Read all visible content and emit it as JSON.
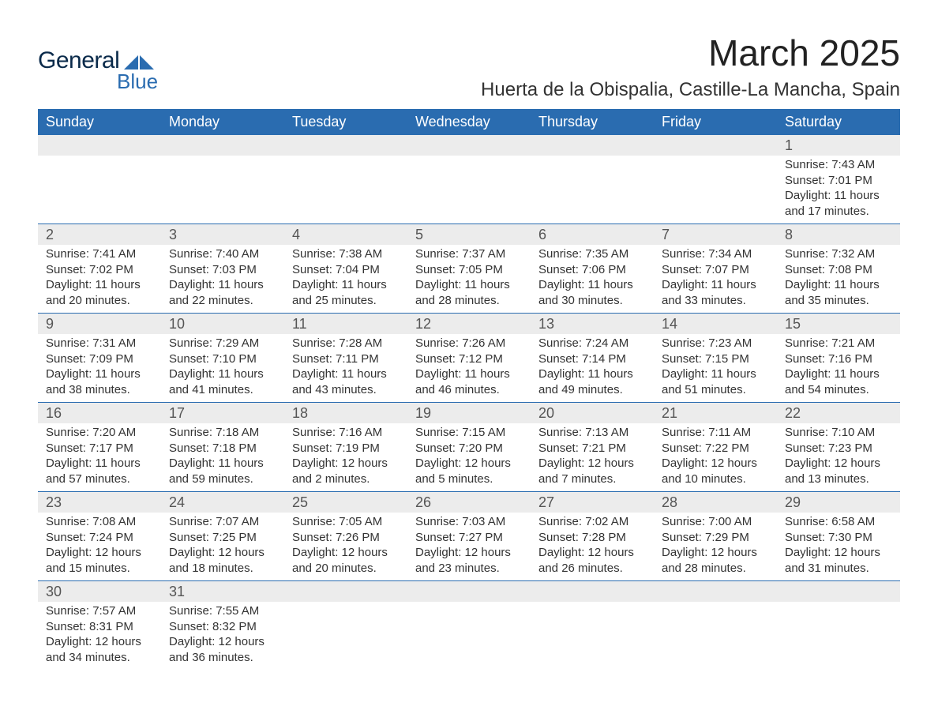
{
  "logo": {
    "word1": "General",
    "word2": "Blue",
    "tri_color": "#2a6cb0",
    "text_color_dark": "#0a2a4a"
  },
  "title": {
    "month": "March 2025",
    "location": "Huerta de la Obispalia, Castille-La Mancha, Spain"
  },
  "colors": {
    "header_bg": "#2a6cb0",
    "header_text": "#ffffff",
    "daynum_bg": "#ececec",
    "daynum_text": "#555555",
    "body_text": "#333333",
    "row_border": "#2a6cb0",
    "page_bg": "#ffffff"
  },
  "fonts": {
    "title_month_pt": 46,
    "title_location_pt": 24,
    "weekday_pt": 18,
    "daynum_pt": 18,
    "body_pt": 15
  },
  "weekdays": [
    "Sunday",
    "Monday",
    "Tuesday",
    "Wednesday",
    "Thursday",
    "Friday",
    "Saturday"
  ],
  "labels": {
    "sunrise": "Sunrise:",
    "sunset": "Sunset:",
    "daylight": "Daylight:"
  },
  "weeks": [
    [
      null,
      null,
      null,
      null,
      null,
      null,
      {
        "n": "1",
        "sunrise": "7:43 AM",
        "sunset": "7:01 PM",
        "daylight": "11 hours and 17 minutes."
      }
    ],
    [
      {
        "n": "2",
        "sunrise": "7:41 AM",
        "sunset": "7:02 PM",
        "daylight": "11 hours and 20 minutes."
      },
      {
        "n": "3",
        "sunrise": "7:40 AM",
        "sunset": "7:03 PM",
        "daylight": "11 hours and 22 minutes."
      },
      {
        "n": "4",
        "sunrise": "7:38 AM",
        "sunset": "7:04 PM",
        "daylight": "11 hours and 25 minutes."
      },
      {
        "n": "5",
        "sunrise": "7:37 AM",
        "sunset": "7:05 PM",
        "daylight": "11 hours and 28 minutes."
      },
      {
        "n": "6",
        "sunrise": "7:35 AM",
        "sunset": "7:06 PM",
        "daylight": "11 hours and 30 minutes."
      },
      {
        "n": "7",
        "sunrise": "7:34 AM",
        "sunset": "7:07 PM",
        "daylight": "11 hours and 33 minutes."
      },
      {
        "n": "8",
        "sunrise": "7:32 AM",
        "sunset": "7:08 PM",
        "daylight": "11 hours and 35 minutes."
      }
    ],
    [
      {
        "n": "9",
        "sunrise": "7:31 AM",
        "sunset": "7:09 PM",
        "daylight": "11 hours and 38 minutes."
      },
      {
        "n": "10",
        "sunrise": "7:29 AM",
        "sunset": "7:10 PM",
        "daylight": "11 hours and 41 minutes."
      },
      {
        "n": "11",
        "sunrise": "7:28 AM",
        "sunset": "7:11 PM",
        "daylight": "11 hours and 43 minutes."
      },
      {
        "n": "12",
        "sunrise": "7:26 AM",
        "sunset": "7:12 PM",
        "daylight": "11 hours and 46 minutes."
      },
      {
        "n": "13",
        "sunrise": "7:24 AM",
        "sunset": "7:14 PM",
        "daylight": "11 hours and 49 minutes."
      },
      {
        "n": "14",
        "sunrise": "7:23 AM",
        "sunset": "7:15 PM",
        "daylight": "11 hours and 51 minutes."
      },
      {
        "n": "15",
        "sunrise": "7:21 AM",
        "sunset": "7:16 PM",
        "daylight": "11 hours and 54 minutes."
      }
    ],
    [
      {
        "n": "16",
        "sunrise": "7:20 AM",
        "sunset": "7:17 PM",
        "daylight": "11 hours and 57 minutes."
      },
      {
        "n": "17",
        "sunrise": "7:18 AM",
        "sunset": "7:18 PM",
        "daylight": "11 hours and 59 minutes."
      },
      {
        "n": "18",
        "sunrise": "7:16 AM",
        "sunset": "7:19 PM",
        "daylight": "12 hours and 2 minutes."
      },
      {
        "n": "19",
        "sunrise": "7:15 AM",
        "sunset": "7:20 PM",
        "daylight": "12 hours and 5 minutes."
      },
      {
        "n": "20",
        "sunrise": "7:13 AM",
        "sunset": "7:21 PM",
        "daylight": "12 hours and 7 minutes."
      },
      {
        "n": "21",
        "sunrise": "7:11 AM",
        "sunset": "7:22 PM",
        "daylight": "12 hours and 10 minutes."
      },
      {
        "n": "22",
        "sunrise": "7:10 AM",
        "sunset": "7:23 PM",
        "daylight": "12 hours and 13 minutes."
      }
    ],
    [
      {
        "n": "23",
        "sunrise": "7:08 AM",
        "sunset": "7:24 PM",
        "daylight": "12 hours and 15 minutes."
      },
      {
        "n": "24",
        "sunrise": "7:07 AM",
        "sunset": "7:25 PM",
        "daylight": "12 hours and 18 minutes."
      },
      {
        "n": "25",
        "sunrise": "7:05 AM",
        "sunset": "7:26 PM",
        "daylight": "12 hours and 20 minutes."
      },
      {
        "n": "26",
        "sunrise": "7:03 AM",
        "sunset": "7:27 PM",
        "daylight": "12 hours and 23 minutes."
      },
      {
        "n": "27",
        "sunrise": "7:02 AM",
        "sunset": "7:28 PM",
        "daylight": "12 hours and 26 minutes."
      },
      {
        "n": "28",
        "sunrise": "7:00 AM",
        "sunset": "7:29 PM",
        "daylight": "12 hours and 28 minutes."
      },
      {
        "n": "29",
        "sunrise": "6:58 AM",
        "sunset": "7:30 PM",
        "daylight": "12 hours and 31 minutes."
      }
    ],
    [
      {
        "n": "30",
        "sunrise": "7:57 AM",
        "sunset": "8:31 PM",
        "daylight": "12 hours and 34 minutes."
      },
      {
        "n": "31",
        "sunrise": "7:55 AM",
        "sunset": "8:32 PM",
        "daylight": "12 hours and 36 minutes."
      },
      null,
      null,
      null,
      null,
      null
    ]
  ]
}
